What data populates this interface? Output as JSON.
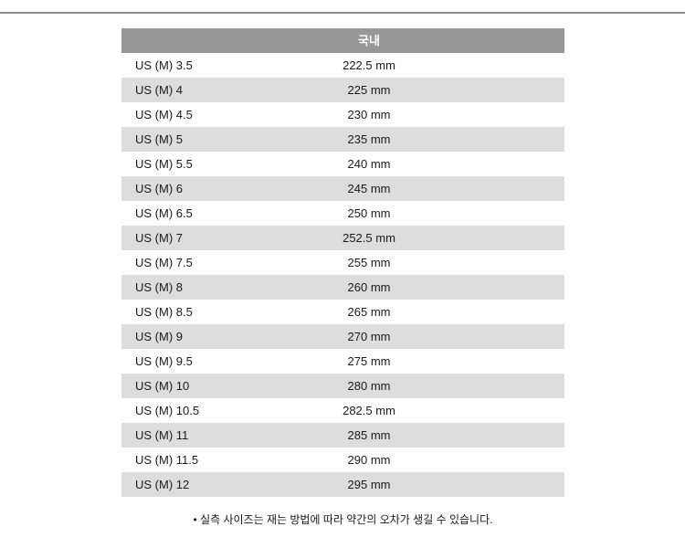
{
  "page": {
    "background": "#ffffff",
    "divider_color": "#8e8e8e"
  },
  "table": {
    "header": {
      "value_label": "국내"
    },
    "colors": {
      "header_bg": "#979797",
      "header_text": "#ffffff",
      "row_bg": "#ffffff",
      "row_alt_bg": "#dddddd",
      "text": "#1a1a1a"
    },
    "rows": [
      {
        "size": "US (M) 3.5",
        "value": "222.5 mm"
      },
      {
        "size": "US (M) 4",
        "value": "225 mm"
      },
      {
        "size": "US (M) 4.5",
        "value": "230 mm"
      },
      {
        "size": "US (M) 5",
        "value": "235 mm"
      },
      {
        "size": "US (M) 5.5",
        "value": "240 mm"
      },
      {
        "size": "US (M) 6",
        "value": "245 mm"
      },
      {
        "size": "US (M) 6.5",
        "value": "250 mm"
      },
      {
        "size": "US (M) 7",
        "value": "252.5 mm"
      },
      {
        "size": "US (M) 7.5",
        "value": "255 mm"
      },
      {
        "size": "US (M) 8",
        "value": "260 mm"
      },
      {
        "size": "US (M) 8.5",
        "value": "265 mm"
      },
      {
        "size": "US (M) 9",
        "value": "270 mm"
      },
      {
        "size": "US (M) 9.5",
        "value": "275 mm"
      },
      {
        "size": "US (M) 10",
        "value": "280 mm"
      },
      {
        "size": "US (M) 10.5",
        "value": "282.5 mm"
      },
      {
        "size": "US (M) 11",
        "value": "285 mm"
      },
      {
        "size": "US (M) 11.5",
        "value": "290 mm"
      },
      {
        "size": "US (M) 12",
        "value": "295 mm"
      }
    ]
  },
  "footnote": {
    "text": "• 실측 사이즈는 재는 방법에 따라 약간의 오차가 생길 수 있습니다."
  }
}
